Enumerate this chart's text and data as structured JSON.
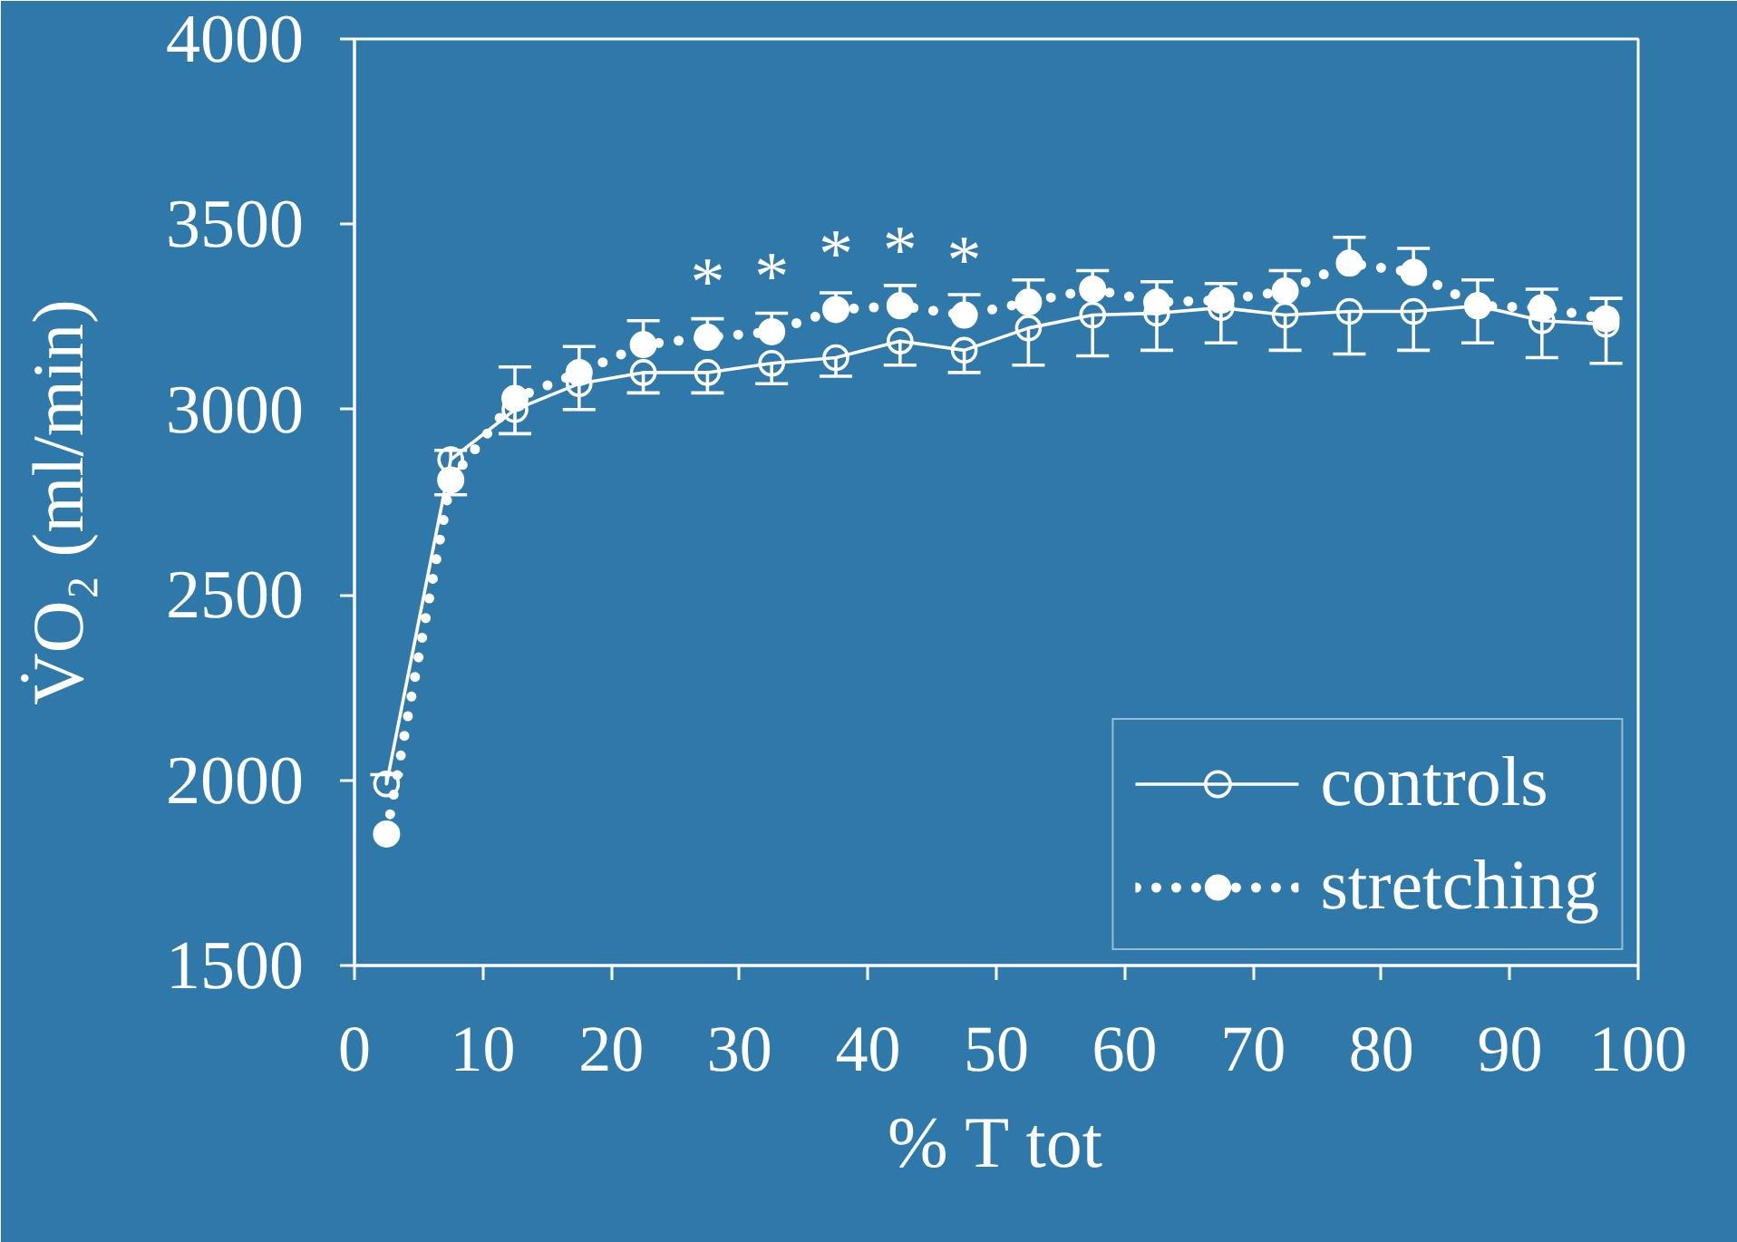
{
  "chart_data": {
    "type": "line",
    "xlabel": "% T tot",
    "ylabel": "V̇O₂ (ml/min)",
    "x": [
      2.5,
      7.5,
      12.5,
      17.5,
      22.5,
      27.5,
      32.5,
      37.5,
      42.5,
      47.5,
      52.5,
      57.5,
      62.5,
      67.5,
      72.5,
      77.5,
      82.5,
      87.5,
      92.5,
      97.5
    ],
    "xlim": [
      0,
      100
    ],
    "xticks": [
      0,
      10,
      20,
      30,
      40,
      50,
      60,
      70,
      80,
      90,
      100
    ],
    "ylim": [
      1500,
      4000
    ],
    "yticks": [
      1500,
      2000,
      2500,
      3000,
      3500,
      4000
    ],
    "grid": false,
    "legend": "bottom right",
    "series": [
      {
        "name": "controls",
        "color": "#ffffff",
        "marker": "circle",
        "line_style": "solid",
        "values": [
          1990,
          2865,
          3000,
          3070,
          3100,
          3100,
          3125,
          3140,
          3185,
          3160,
          3220,
          3255,
          3260,
          3275,
          3255,
          3265,
          3265,
          3280,
          3240,
          3230
        ],
        "errors": [
          [
            1990,
            2015
          ],
          [
            2865,
            2890
          ],
          [
            2935,
            3000
          ],
          [
            3000,
            3070
          ],
          [
            3045,
            3100
          ],
          [
            3045,
            3100
          ],
          [
            3070,
            3125
          ],
          [
            3090,
            3140
          ],
          [
            3120,
            3185
          ],
          [
            3100,
            3160
          ],
          [
            3120,
            3220
          ],
          [
            3145,
            3255
          ],
          [
            3160,
            3260
          ],
          [
            3180,
            3275
          ],
          [
            3160,
            3255
          ],
          [
            3150,
            3265
          ],
          [
            3160,
            3265
          ],
          [
            3180,
            3280
          ],
          [
            3140,
            3240
          ],
          [
            3125,
            3230
          ]
        ]
      },
      {
        "name": "stretching",
        "color": "#ffffff",
        "marker": "circle",
        "line_style": "dotted",
        "values": [
          1855,
          2810,
          3030,
          3100,
          3175,
          3195,
          3210,
          3270,
          3280,
          3255,
          3290,
          3325,
          3290,
          3295,
          3320,
          3395,
          3370,
          3280,
          3275,
          3245
        ],
        "errors": [
          null,
          [
            2770,
            2810
          ],
          [
            3030,
            3115
          ],
          [
            3100,
            3170
          ],
          [
            3175,
            3240
          ],
          [
            3195,
            3245
          ],
          [
            3210,
            3260
          ],
          [
            3270,
            3315
          ],
          [
            3280,
            3335
          ],
          [
            3255,
            3310
          ],
          [
            3290,
            3350
          ],
          [
            3325,
            3375
          ],
          [
            3290,
            3345
          ],
          [
            3295,
            3340
          ],
          [
            3320,
            3375
          ],
          [
            3395,
            3465
          ],
          [
            3370,
            3435
          ],
          [
            3280,
            3350
          ],
          [
            3275,
            3325
          ],
          [
            3245,
            3300
          ]
        ]
      }
    ],
    "annotations": [
      {
        "text": "*",
        "x": 27.5,
        "y": 3195
      },
      {
        "text": "*",
        "x": 32.5,
        "y": 3210
      },
      {
        "text": "*",
        "x": 37.5,
        "y": 3270
      },
      {
        "text": "*",
        "x": 42.5,
        "y": 3280
      },
      {
        "text": "*",
        "x": 47.5,
        "y": 3255
      }
    ]
  }
}
